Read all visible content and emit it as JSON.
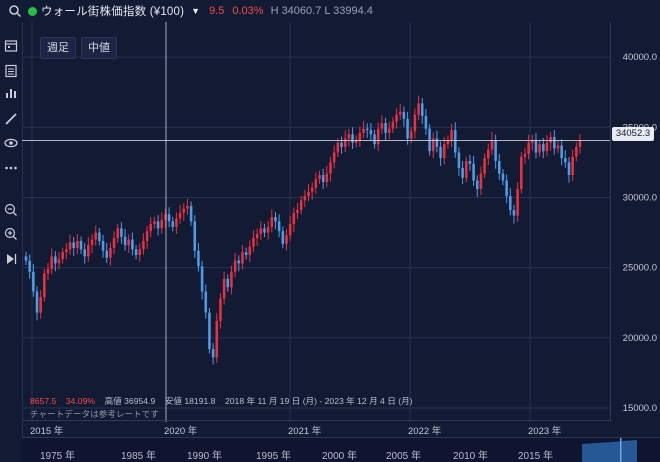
{
  "header": {
    "title": "ウォール街株価指数 (¥100)",
    "change": "9.5",
    "change_pct": "0.03%",
    "hl": "H 34060.7  L 33994.4",
    "status_color": "#26c046"
  },
  "toolbar": {
    "weekly": "週足",
    "mid": "中値"
  },
  "chart_data": {
    "type": "candlestick",
    "up_color": "#e8313f",
    "down_color": "#4e9be8",
    "ylim": [
      14000,
      42500
    ],
    "y_ticks": [
      "40000.0",
      "35000.0",
      "30000.0",
      "25000.0",
      "20000.0",
      "15000.0"
    ],
    "x_ticks": [
      "2015 年",
      "2020 年",
      "2021 年",
      "2022 年",
      "2023 年"
    ],
    "last_price": "34052.3",
    "series": [
      25500,
      24700,
      23300,
      21800,
      22900,
      24600,
      24900,
      25800,
      25300,
      25600,
      26100,
      26300,
      26800,
      26400,
      26900,
      26300,
      25800,
      26600,
      27000,
      27500,
      26900,
      26200,
      25700,
      26400,
      27100,
      27800,
      27200,
      26600,
      27000,
      26300,
      25900,
      26300,
      26900,
      27600,
      28100,
      28300,
      27800,
      28400,
      28800,
      28300,
      27900,
      28500,
      28900,
      29200,
      29400,
      28300,
      26200,
      25100,
      23300,
      21800,
      19200,
      18600,
      21200,
      22800,
      24200,
      23600,
      24700,
      25500,
      25300,
      26100,
      25900,
      26500,
      27100,
      27400,
      27800,
      27500,
      27900,
      28600,
      28300,
      27600,
      26700,
      27300,
      28100,
      28900,
      29100,
      29800,
      30100,
      30400,
      30700,
      31300,
      31600,
      31100,
      31700,
      32500,
      33200,
      33900,
      33600,
      34200,
      34500,
      33900,
      34100,
      34600,
      34900,
      34800,
      34500,
      33800,
      34900,
      35300,
      34600,
      34900,
      35400,
      35900,
      36100,
      35600,
      34200,
      34700,
      35900,
      36700,
      35800,
      34900,
      33300,
      34200,
      33600,
      32800,
      33800,
      34100,
      34800,
      33200,
      32100,
      31400,
      32600,
      32400,
      31200,
      30600,
      31700,
      32800,
      33400,
      34100,
      32600,
      31700,
      31200,
      30100,
      29100,
      28700,
      30600,
      32900,
      33100,
      33900,
      34100,
      33200,
      33800,
      33300,
      33900,
      34300,
      33500,
      33700,
      32800,
      32500,
      31600,
      32900,
      33600,
      34052
    ],
    "high": "高値 36954.9",
    "low": "安値 18191.8",
    "range_text": "2018 年 11 月 19 日 (月) - 2023 年 12 月 4 日 (月)",
    "stat1": "8657.5",
    "stat2": "34.09%"
  },
  "note": "チャートデータは参考レートです",
  "navigator": {
    "labels": [
      "1975 年",
      "1985 年",
      "1990 年",
      "1995 年",
      "2000 年",
      "2005 年",
      "2010 年",
      "2015 年"
    ]
  },
  "icons": [
    "search-icon",
    "calendar-icon",
    "list-icon",
    "bar-chart-icon",
    "pencil-icon",
    "eye-icon",
    "more-icon",
    "zoom-out-icon",
    "zoom-in-icon",
    "play-icon"
  ]
}
